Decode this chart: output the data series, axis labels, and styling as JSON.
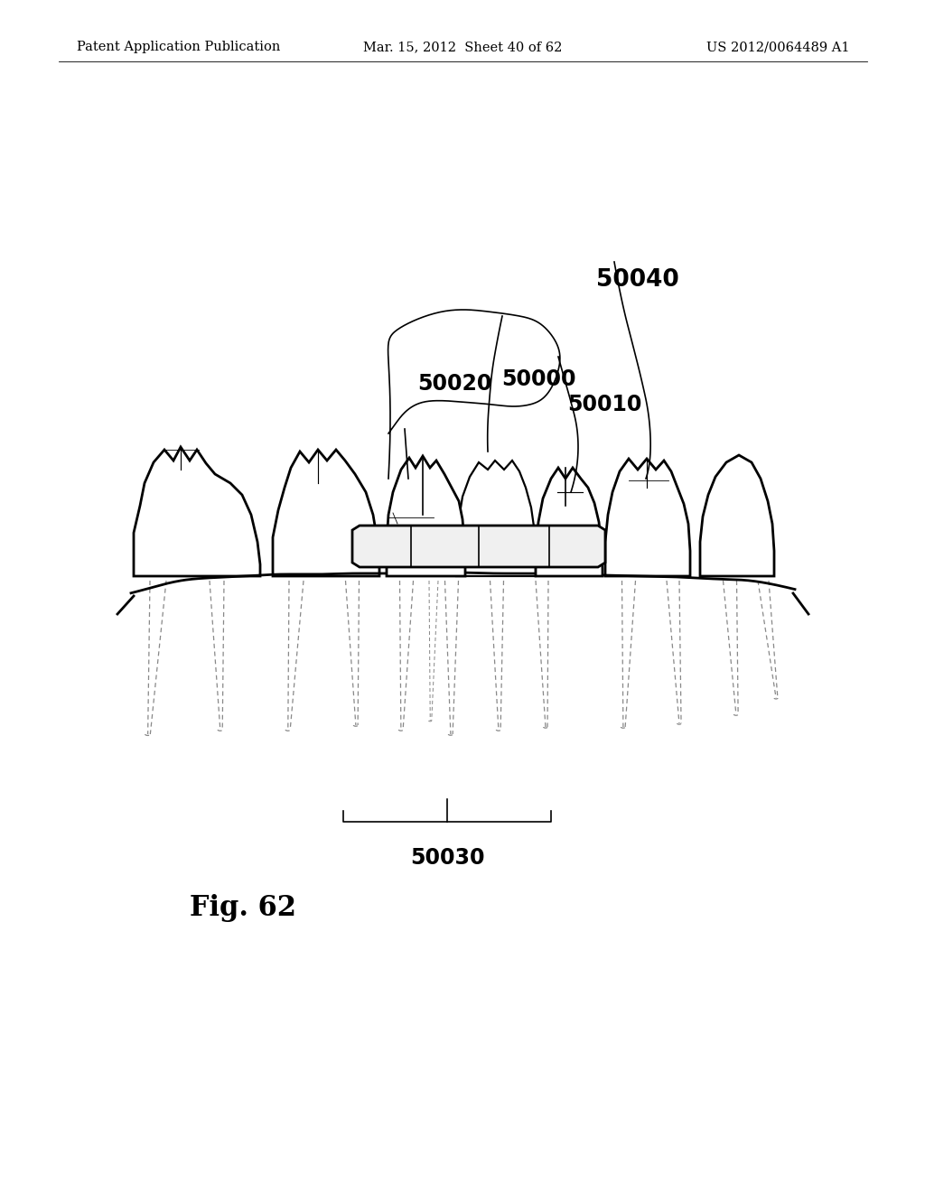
{
  "background_color": "#ffffff",
  "header_left": "Patent Application Publication",
  "header_center": "Mar. 15, 2012  Sheet 40 of 62",
  "header_right": "US 2012/0064489 A1",
  "header_fontsize": 10.5,
  "fig_label": "Fig. 62",
  "fig_label_fontsize": 22,
  "label_fontsize": 15,
  "line_color": "#000000",
  "root_color": "#888888",
  "lw_main": 2.0,
  "lw_thin": 1.2,
  "lw_root": 0.9
}
